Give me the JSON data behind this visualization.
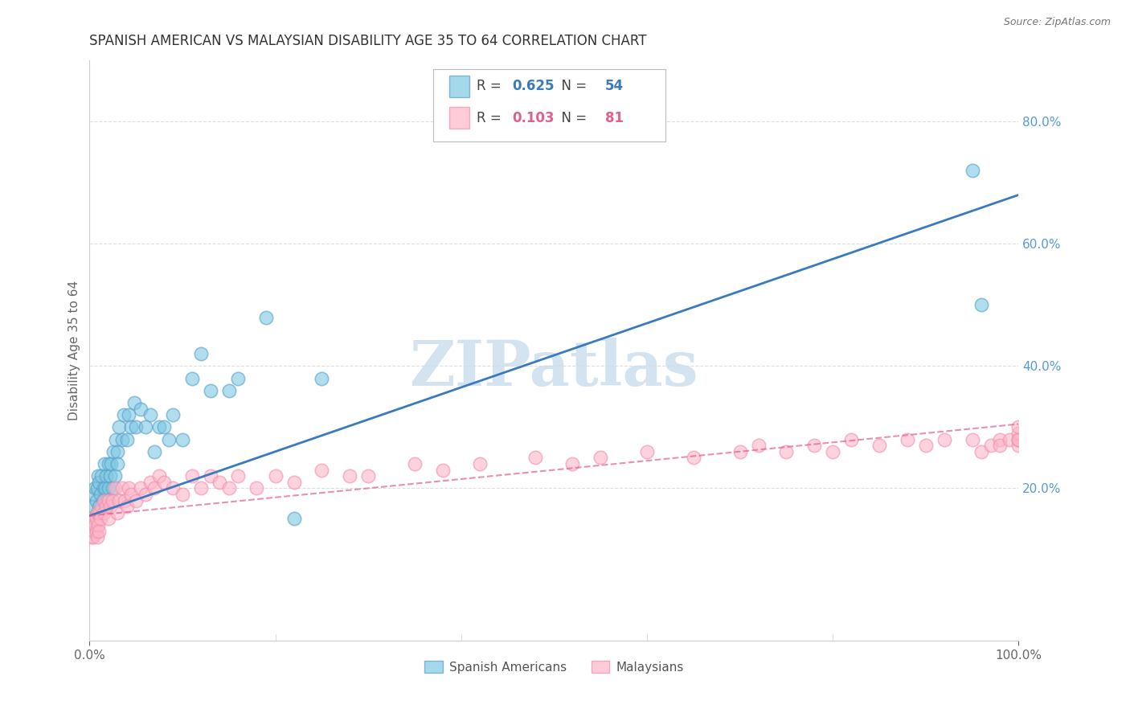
{
  "title": "SPANISH AMERICAN VS MALAYSIAN DISABILITY AGE 35 TO 64 CORRELATION CHART",
  "source": "Source: ZipAtlas.com",
  "ylabel": "Disability Age 35 to 64",
  "xlim": [
    0.0,
    1.0
  ],
  "ylim": [
    -0.05,
    0.9
  ],
  "yticks_right": [
    0.2,
    0.4,
    0.6,
    0.8
  ],
  "ytick_labels_right": [
    "20.0%",
    "40.0%",
    "60.0%",
    "80.0%"
  ],
  "xticks": [
    0.0,
    1.0
  ],
  "xtick_labels": [
    "0.0%",
    "100.0%"
  ],
  "legend1_R": "0.625",
  "legend1_N": "54",
  "legend2_R": "0.103",
  "legend2_N": "81",
  "legend_label1": "Spanish Americans",
  "legend_label2": "Malaysians",
  "blue_color": "#7ec8e3",
  "pink_color": "#ffb6c8",
  "blue_marker_edge": "#5aa0c8",
  "pink_marker_edge": "#f090b0",
  "blue_line_color": "#3a7abf",
  "pink_line_color": "#e06090",
  "legend_R_blue_color": "#3a7abf",
  "legend_N_blue_color": "#3a7abf",
  "legend_R_pink_color": "#e06090",
  "legend_N_pink_color": "#e06090",
  "watermark": "ZIPatlas",
  "watermark_color": "#ccdeed",
  "title_fontsize": 12,
  "axis_label_fontsize": 11,
  "tick_fontsize": 11,
  "right_tick_color": "#5599dd",
  "background_color": "#ffffff",
  "grid_color": "#dddddd",
  "blue_trend_x": [
    0.0,
    1.0
  ],
  "blue_trend_y": [
    0.155,
    0.68
  ],
  "pink_trend_x": [
    0.0,
    1.0
  ],
  "pink_trend_y": [
    0.155,
    0.305
  ],
  "blue_scatter_x": [
    0.004,
    0.005,
    0.006,
    0.007,
    0.008,
    0.008,
    0.009,
    0.01,
    0.01,
    0.012,
    0.013,
    0.014,
    0.015,
    0.016,
    0.017,
    0.018,
    0.019,
    0.02,
    0.02,
    0.022,
    0.023,
    0.025,
    0.026,
    0.027,
    0.028,
    0.03,
    0.03,
    0.032,
    0.035,
    0.037,
    0.04,
    0.042,
    0.045,
    0.048,
    0.05,
    0.055,
    0.06,
    0.065,
    0.07,
    0.075,
    0.08,
    0.085,
    0.09,
    0.1,
    0.11,
    0.12,
    0.13,
    0.15,
    0.16,
    0.19,
    0.22,
    0.25,
    0.95,
    0.96
  ],
  "blue_scatter_y": [
    0.17,
    0.19,
    0.2,
    0.18,
    0.16,
    0.2,
    0.22,
    0.17,
    0.21,
    0.19,
    0.22,
    0.18,
    0.2,
    0.24,
    0.2,
    0.22,
    0.18,
    0.2,
    0.24,
    0.22,
    0.24,
    0.2,
    0.26,
    0.22,
    0.28,
    0.26,
    0.24,
    0.3,
    0.28,
    0.32,
    0.28,
    0.32,
    0.3,
    0.34,
    0.3,
    0.33,
    0.3,
    0.32,
    0.26,
    0.3,
    0.3,
    0.28,
    0.32,
    0.28,
    0.38,
    0.42,
    0.36,
    0.36,
    0.38,
    0.48,
    0.15,
    0.38,
    0.72,
    0.5
  ],
  "pink_scatter_x": [
    0.002,
    0.003,
    0.004,
    0.005,
    0.005,
    0.006,
    0.007,
    0.007,
    0.008,
    0.008,
    0.009,
    0.01,
    0.01,
    0.012,
    0.013,
    0.015,
    0.016,
    0.018,
    0.02,
    0.02,
    0.022,
    0.025,
    0.027,
    0.03,
    0.032,
    0.035,
    0.038,
    0.04,
    0.042,
    0.045,
    0.05,
    0.055,
    0.06,
    0.065,
    0.07,
    0.075,
    0.08,
    0.09,
    0.1,
    0.11,
    0.12,
    0.13,
    0.14,
    0.15,
    0.16,
    0.18,
    0.2,
    0.22,
    0.25,
    0.28,
    0.3,
    0.35,
    0.38,
    0.42,
    0.48,
    0.52,
    0.55,
    0.6,
    0.65,
    0.7,
    0.72,
    0.75,
    0.78,
    0.8,
    0.82,
    0.85,
    0.88,
    0.9,
    0.92,
    0.95,
    0.96,
    0.97,
    0.98,
    0.98,
    0.99,
    1.0,
    1.0,
    1.0,
    1.0,
    1.0,
    1.0
  ],
  "pink_scatter_y": [
    0.12,
    0.14,
    0.12,
    0.15,
    0.13,
    0.14,
    0.13,
    0.15,
    0.12,
    0.16,
    0.14,
    0.13,
    0.16,
    0.15,
    0.17,
    0.16,
    0.18,
    0.17,
    0.15,
    0.18,
    0.17,
    0.18,
    0.2,
    0.16,
    0.18,
    0.2,
    0.18,
    0.17,
    0.2,
    0.19,
    0.18,
    0.2,
    0.19,
    0.21,
    0.2,
    0.22,
    0.21,
    0.2,
    0.19,
    0.22,
    0.2,
    0.22,
    0.21,
    0.2,
    0.22,
    0.2,
    0.22,
    0.21,
    0.23,
    0.22,
    0.22,
    0.24,
    0.23,
    0.24,
    0.25,
    0.24,
    0.25,
    0.26,
    0.25,
    0.26,
    0.27,
    0.26,
    0.27,
    0.26,
    0.28,
    0.27,
    0.28,
    0.27,
    0.28,
    0.28,
    0.26,
    0.27,
    0.28,
    0.27,
    0.28,
    0.28,
    0.27,
    0.28,
    0.29,
    0.28,
    0.3
  ]
}
